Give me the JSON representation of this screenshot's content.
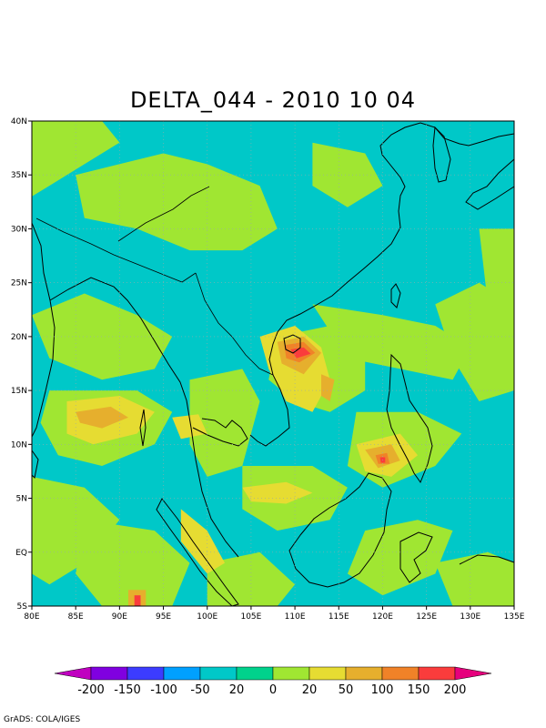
{
  "title": "DELTA_044 - 2010 10 04",
  "credit": "GrADS: COLA/IGES",
  "map": {
    "lon_range": [
      80,
      135
    ],
    "lat_range": [
      -5,
      40
    ],
    "lon_ticks": [
      "80E",
      "85E",
      "90E",
      "95E",
      "100E",
      "105E",
      "110E",
      "115E",
      "120E",
      "125E",
      "130E",
      "135E"
    ],
    "lat_ticks": [
      "5S",
      "EQ",
      "5N",
      "10N",
      "15N",
      "20N",
      "25N",
      "30N",
      "35N",
      "40N"
    ],
    "grid_lines": true
  },
  "colorbar": {
    "labels": [
      "-200",
      "-150",
      "-100",
      "-50",
      "20",
      "0",
      "20",
      "50",
      "100",
      "150",
      "200"
    ],
    "colors": [
      "#c000c0",
      "#8000e0",
      "#3c3cff",
      "#00a0ff",
      "#00c8c8",
      "#00d28c",
      "#a0e632",
      "#e6dc32",
      "#e6af2d",
      "#f08228",
      "#fa3c3c",
      "#e6007d"
    ]
  },
  "palette": {
    "cyan": "#00c8c8",
    "green": "#a0e632",
    "yellow": "#e6dc32",
    "orange": "#e6af2d",
    "darkorange": "#f08228",
    "red": "#fa3c3c",
    "magenta": "#e6007d"
  }
}
